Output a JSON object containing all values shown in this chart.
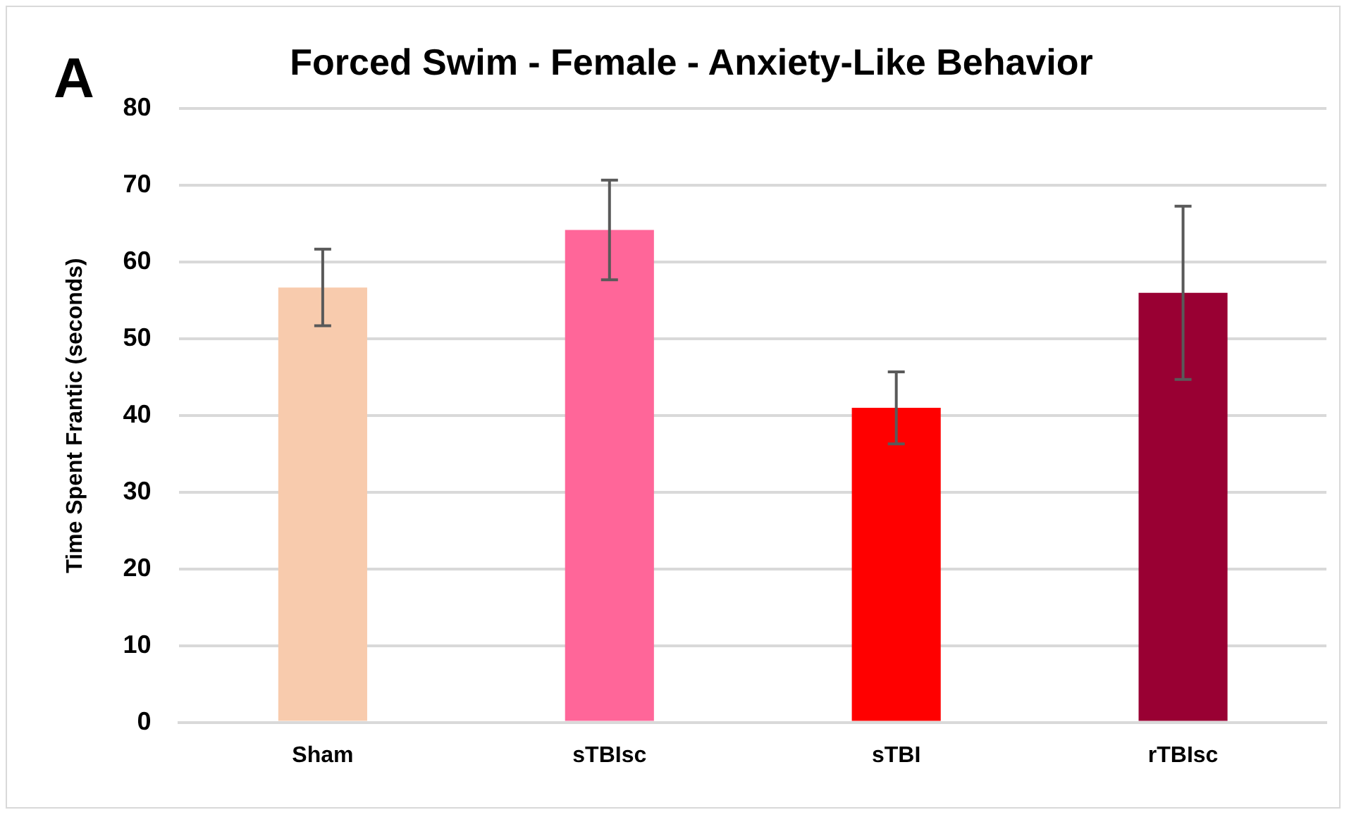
{
  "chart_data": {
    "type": "bar",
    "title": "Forced Swim - Female - Anxiety-Like Behavior",
    "annotations": [
      "A"
    ],
    "ylabel": "Time Spent Frantic (seconds)",
    "categories": [
      "Sham",
      "sTBIsc",
      "sTBI",
      "rTBIsc"
    ],
    "values": [
      56.7,
      64.2,
      41.0,
      56.0
    ],
    "errors": [
      5.0,
      6.5,
      4.7,
      11.3
    ],
    "colors": [
      "#f8cbad",
      "#ff6699",
      "#ff0000",
      "#990033"
    ],
    "ylim": [
      0,
      80
    ],
    "yticks": [
      0,
      10,
      20,
      30,
      40,
      50,
      60,
      70,
      80
    ],
    "grid": "y",
    "legend": false
  }
}
